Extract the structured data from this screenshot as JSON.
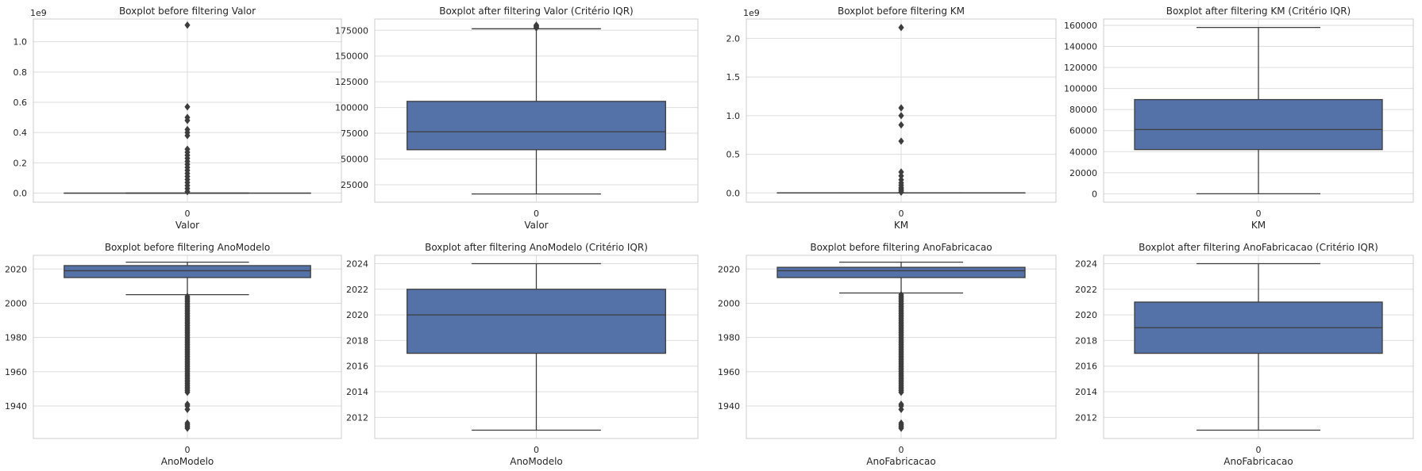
{
  "chart_data": [
    {
      "type": "boxplot",
      "title": "Boxplot before filtering Valor",
      "xlabel": "Valor",
      "categories": [
        "0"
      ],
      "offset_text": "1e9",
      "ylim": [
        -0.06,
        1.15
      ],
      "yticks": [
        0.0,
        0.2,
        0.4,
        0.6,
        0.8,
        1.0
      ],
      "ytick_labels": [
        "0.0",
        "0.2",
        "0.4",
        "0.6",
        "0.8",
        "1.0"
      ],
      "box": {
        "q1": 0.0,
        "median": 0.0,
        "q3": 0.0,
        "whisker_low": 0.0,
        "whisker_high": 0.0
      },
      "outliers": [
        1.11,
        0.57,
        0.5,
        0.48,
        0.42,
        0.4,
        0.38,
        0.29,
        0.27,
        0.25,
        0.23,
        0.21,
        0.19,
        0.17,
        0.15,
        0.13,
        0.11,
        0.09,
        0.07,
        0.05,
        0.03,
        0.01
      ],
      "grid": true
    },
    {
      "type": "boxplot",
      "title": "Boxplot after filtering Valor (Critério IQR)",
      "xlabel": "Valor",
      "categories": [
        "0"
      ],
      "ylim": [
        8000,
        186000
      ],
      "yticks": [
        25000,
        50000,
        75000,
        100000,
        125000,
        150000,
        175000
      ],
      "ytick_labels": [
        "25000",
        "50000",
        "75000",
        "100000",
        "125000",
        "150000",
        "175000"
      ],
      "box": {
        "q1": 59000,
        "median": 76500,
        "q3": 106000,
        "whisker_low": 16000,
        "whisker_high": 176500
      },
      "outliers": [
        177500,
        178500,
        179500,
        180000
      ],
      "grid": true
    },
    {
      "type": "boxplot",
      "title": "Boxplot before filtering KM",
      "xlabel": "KM",
      "categories": [
        "0"
      ],
      "offset_text": "1e9",
      "ylim": [
        -0.12,
        2.25
      ],
      "yticks": [
        0.0,
        0.5,
        1.0,
        1.5,
        2.0
      ],
      "ytick_labels": [
        "0.0",
        "0.5",
        "1.0",
        "1.5",
        "2.0"
      ],
      "box": {
        "q1": 0.0,
        "median": 0.0,
        "q3": 0.0,
        "whisker_low": 0.0,
        "whisker_high": 0.0
      },
      "outliers": [
        2.14,
        1.1,
        1.0,
        0.88,
        0.67,
        0.27,
        0.22,
        0.17,
        0.13,
        0.1,
        0.07,
        0.05,
        0.03,
        0.01
      ],
      "grid": true
    },
    {
      "type": "boxplot",
      "title": "Boxplot after filtering KM (Critério IQR)",
      "xlabel": "KM",
      "categories": [
        "0"
      ],
      "ylim": [
        -8000,
        166000
      ],
      "yticks": [
        0,
        20000,
        40000,
        60000,
        80000,
        100000,
        120000,
        140000,
        160000
      ],
      "ytick_labels": [
        "0",
        "20000",
        "40000",
        "60000",
        "80000",
        "100000",
        "120000",
        "140000",
        "160000"
      ],
      "box": {
        "q1": 42000,
        "median": 61000,
        "q3": 89500,
        "whisker_low": 0,
        "whisker_high": 158000
      },
      "outliers": [],
      "grid": true
    },
    {
      "type": "boxplot",
      "title": "Boxplot before filtering AnoModelo",
      "xlabel": "AnoModelo",
      "categories": [
        "0"
      ],
      "ylim": [
        1921,
        2028
      ],
      "yticks": [
        1940,
        1960,
        1980,
        2000,
        2020
      ],
      "ytick_labels": [
        "1940",
        "1960",
        "1980",
        "2000",
        "2020"
      ],
      "box": {
        "q1": 2015,
        "median": 2019,
        "q3": 2022,
        "whisker_low": 2005,
        "whisker_high": 2024
      },
      "outliers": [
        2004,
        2003,
        2002,
        2001,
        2000,
        1999,
        1998,
        1997,
        1996,
        1995,
        1994,
        1993,
        1992,
        1991,
        1990,
        1989,
        1988,
        1987,
        1986,
        1985,
        1984,
        1983,
        1982,
        1981,
        1980,
        1979,
        1978,
        1977,
        1976,
        1975,
        1974,
        1973,
        1972,
        1971,
        1970,
        1969,
        1968,
        1967,
        1966,
        1965,
        1964,
        1963,
        1962,
        1961,
        1960,
        1959,
        1958,
        1957,
        1956,
        1955,
        1954,
        1953,
        1952,
        1951,
        1950,
        1949,
        1948,
        1941,
        1940,
        1938,
        1930,
        1929,
        1928,
        1927
      ],
      "grid": true
    },
    {
      "type": "boxplot",
      "title": "Boxplot after filtering AnoModelo (Critério IQR)",
      "xlabel": "AnoModelo",
      "categories": [
        "0"
      ],
      "ylim": [
        2010.35,
        2024.65
      ],
      "yticks": [
        2012,
        2014,
        2016,
        2018,
        2020,
        2022,
        2024
      ],
      "ytick_labels": [
        "2012",
        "2014",
        "2016",
        "2018",
        "2020",
        "2022",
        "2024"
      ],
      "box": {
        "q1": 2017,
        "median": 2020,
        "q3": 2022,
        "whisker_low": 2011,
        "whisker_high": 2024
      },
      "outliers": [],
      "grid": true
    },
    {
      "type": "boxplot",
      "title": "Boxplot before filtering AnoFabricacao",
      "xlabel": "AnoFabricacao",
      "categories": [
        "0"
      ],
      "ylim": [
        1921,
        2028
      ],
      "yticks": [
        1940,
        1960,
        1980,
        2000,
        2020
      ],
      "ytick_labels": [
        "1940",
        "1960",
        "1980",
        "2000",
        "2020"
      ],
      "box": {
        "q1": 2015,
        "median": 2019,
        "q3": 2021,
        "whisker_low": 2006,
        "whisker_high": 2024
      },
      "outliers": [
        2005,
        2004,
        2003,
        2002,
        2001,
        2000,
        1999,
        1998,
        1997,
        1996,
        1995,
        1994,
        1993,
        1992,
        1991,
        1990,
        1989,
        1988,
        1987,
        1986,
        1985,
        1984,
        1983,
        1982,
        1981,
        1980,
        1979,
        1978,
        1977,
        1976,
        1975,
        1974,
        1973,
        1972,
        1971,
        1970,
        1969,
        1968,
        1967,
        1966,
        1965,
        1964,
        1963,
        1962,
        1961,
        1960,
        1959,
        1958,
        1957,
        1956,
        1955,
        1954,
        1953,
        1952,
        1951,
        1950,
        1949,
        1948,
        1941,
        1940,
        1938,
        1930,
        1929,
        1928,
        1927
      ],
      "grid": true
    },
    {
      "type": "boxplot",
      "title": "Boxplot after filtering AnoFabricacao (Critério IQR)",
      "xlabel": "AnoFabricacao",
      "categories": [
        "0"
      ],
      "ylim": [
        2010.35,
        2024.65
      ],
      "yticks": [
        2012,
        2014,
        2016,
        2018,
        2020,
        2022,
        2024
      ],
      "ytick_labels": [
        "2012",
        "2014",
        "2016",
        "2018",
        "2020",
        "2022",
        "2024"
      ],
      "box": {
        "q1": 2017,
        "median": 2019,
        "q3": 2021,
        "whisker_low": 2011,
        "whisker_high": 2024
      },
      "outliers": [],
      "grid": true
    }
  ],
  "colors": {
    "box_fill": "#5471a8",
    "line": "#3d3d3d",
    "grid": "#dddddd",
    "spine": "#cccccc",
    "text": "#262626"
  }
}
